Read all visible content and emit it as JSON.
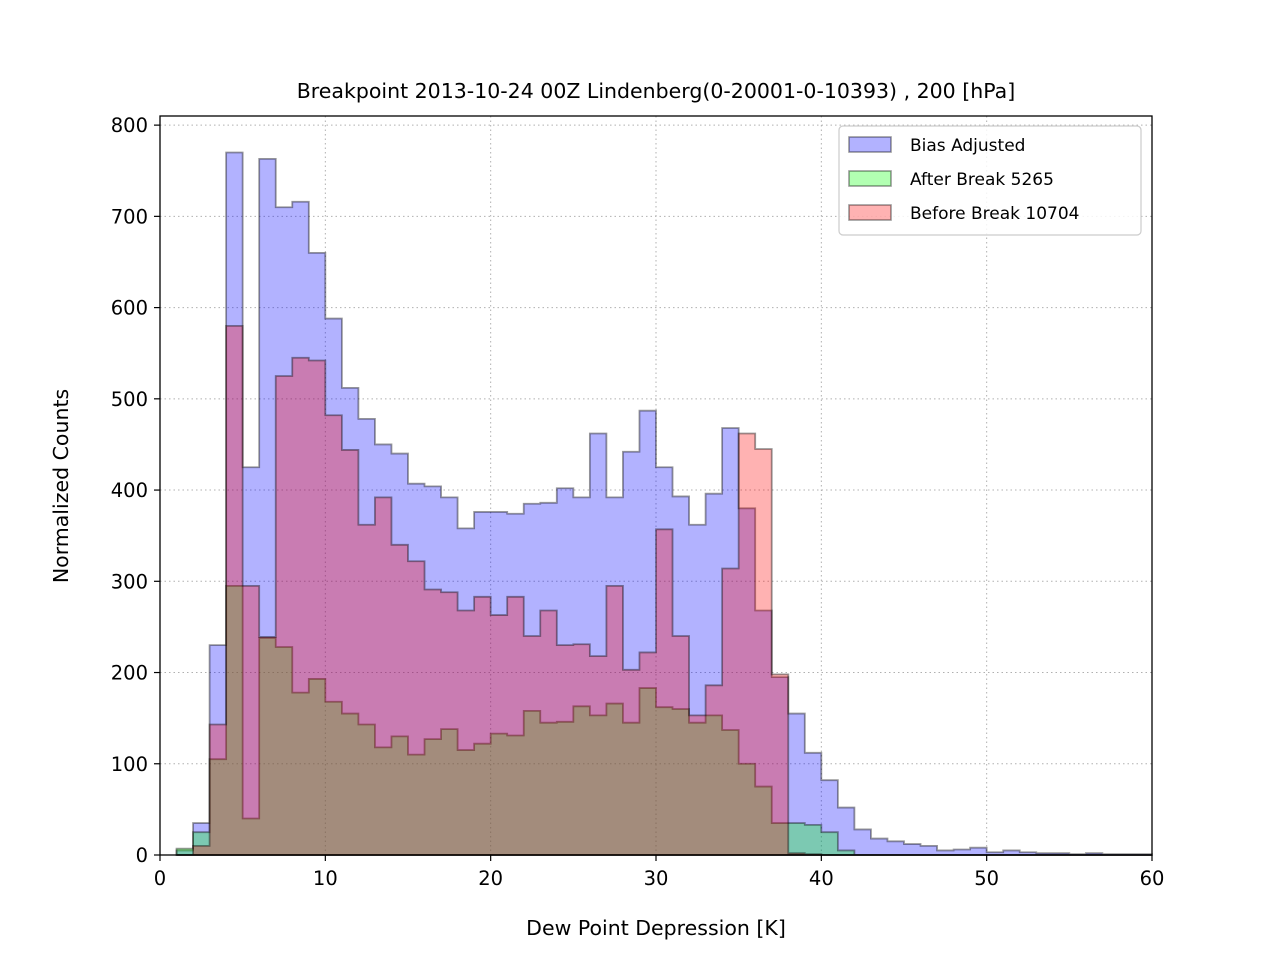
{
  "chart_data": {
    "type": "histogram",
    "title": "Breakpoint 2013-10-24 00Z Lindenberg(0-20001-0-10393) , 200 [hPa]",
    "xlabel": "Dew Point Depression [K]",
    "ylabel": "Normalized Counts",
    "xlim": [
      0,
      60
    ],
    "ylim": [
      0,
      810
    ],
    "xticks": [
      0,
      10,
      20,
      30,
      40,
      50,
      60
    ],
    "yticks": [
      0,
      100,
      200,
      300,
      400,
      500,
      600,
      700,
      800
    ],
    "grid": true,
    "legend_position": "upper right",
    "bin_start": 1,
    "bin_width": 1,
    "series": [
      {
        "name": "Bias Adjusted",
        "color": "#0000ff",
        "values": [
          5,
          35,
          230,
          770,
          425,
          763,
          710,
          716,
          660,
          588,
          512,
          478,
          450,
          440,
          407,
          404,
          392,
          358,
          376,
          376,
          374,
          385,
          386,
          402,
          392,
          462,
          392,
          442,
          487,
          425,
          393,
          362,
          396,
          468,
          380,
          268,
          195,
          155,
          112,
          82,
          52,
          28,
          18,
          15,
          12,
          10,
          5,
          6,
          8,
          3,
          5,
          3,
          2,
          2,
          1,
          2,
          1,
          1,
          1
        ]
      },
      {
        "name": "After Break 5265",
        "color": "#00ff00",
        "values": [
          7,
          25,
          105,
          295,
          40,
          238,
          228,
          178,
          193,
          168,
          155,
          143,
          118,
          130,
          110,
          127,
          138,
          115,
          122,
          133,
          131,
          158,
          145,
          146,
          163,
          153,
          166,
          145,
          183,
          162,
          160,
          145,
          153,
          137,
          100,
          75,
          35,
          35,
          33,
          25,
          5,
          0,
          0,
          0,
          0,
          0,
          0,
          0,
          0,
          0,
          0,
          0,
          0,
          0,
          0,
          0,
          0,
          0,
          0
        ]
      },
      {
        "name": "Before Break 10704",
        "color": "#ff0000",
        "values": [
          0,
          10,
          143,
          580,
          295,
          239,
          525,
          545,
          542,
          482,
          444,
          362,
          392,
          340,
          322,
          291,
          288,
          268,
          283,
          263,
          283,
          240,
          268,
          230,
          231,
          218,
          295,
          203,
          222,
          357,
          240,
          153,
          186,
          314,
          462,
          445,
          198,
          2,
          1,
          0,
          0,
          0,
          0,
          0,
          0,
          0,
          0,
          0,
          0,
          0,
          0,
          0,
          0,
          0,
          0,
          0,
          0,
          0,
          0
        ]
      }
    ]
  }
}
